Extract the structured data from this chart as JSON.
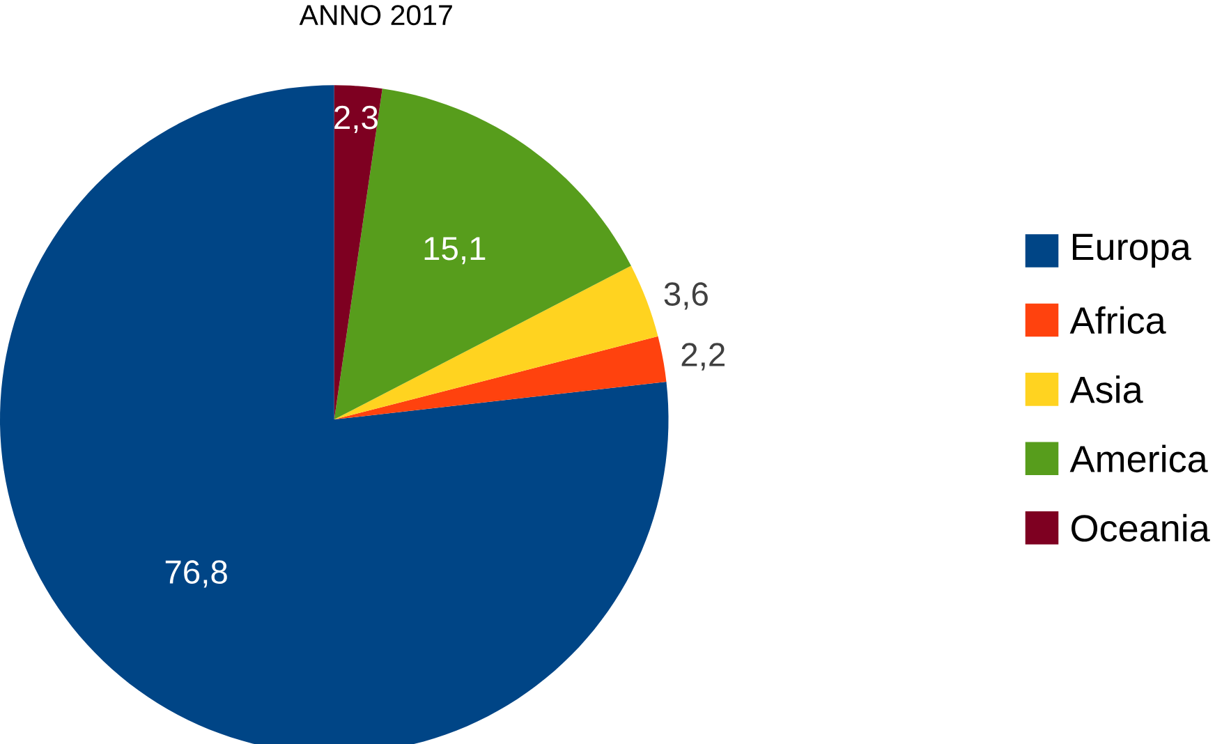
{
  "chart_data": {
    "type": "pie",
    "title": "ANNO 2017",
    "categories": [
      "Europa",
      "Africa",
      "Asia",
      "America",
      "Oceania"
    ],
    "values": [
      76.8,
      2.2,
      3.6,
      15.1,
      2.3
    ],
    "value_labels": [
      "76,8",
      "2,2",
      "3,6",
      "15,1",
      "2,3"
    ],
    "colors": [
      "#004586",
      "#ff420e",
      "#ffd320",
      "#579d1c",
      "#7e0021"
    ],
    "legend": "right"
  }
}
